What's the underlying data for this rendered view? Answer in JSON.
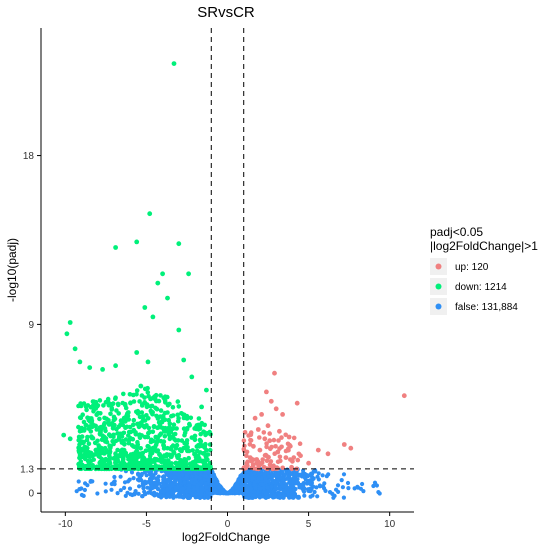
{
  "chart_data": {
    "type": "scatter",
    "title": "SRvsCR",
    "xlabel": "log2FoldChange",
    "ylabel": "-log10(padj)",
    "xlim": [
      -11.5,
      11.5
    ],
    "ylim": [
      -1.0,
      24.8
    ],
    "x_ticks": [
      -10,
      -5,
      0,
      5,
      10
    ],
    "y_ticks": [
      0,
      1.3,
      9,
      18
    ],
    "grid": false,
    "legend": {
      "title_line1": "padj<0.05",
      "title_line2": "|log2FoldChange|>1",
      "placement": "right",
      "entries": [
        {
          "label": "up: 120",
          "color": "#f08080"
        },
        {
          "label": "down: 1214",
          "color": "#00f07a"
        },
        {
          "label": "false: 131,884",
          "color": "#2e8ff5"
        }
      ]
    },
    "thresholds": {
      "x": [
        -1,
        1
      ],
      "y": 1.3
    },
    "series": [
      {
        "name": "up: 120",
        "color": "#f08080",
        "points": [
          [
            10.9,
            5.2
          ],
          [
            2.9,
            6.4
          ],
          [
            2.4,
            5.4
          ],
          [
            2.7,
            4.9
          ],
          [
            4.3,
            4.8
          ],
          [
            3.0,
            4.5
          ],
          [
            3.4,
            4.2
          ],
          [
            2.1,
            4.2
          ],
          [
            1.7,
            4.0
          ],
          [
            1.9,
            3.4
          ],
          [
            2.5,
            3.6
          ],
          [
            3.2,
            3.3
          ],
          [
            3.8,
            3.0
          ],
          [
            2.6,
            2.8
          ],
          [
            2.3,
            2.9
          ],
          [
            7.2,
            2.6
          ],
          [
            6.2,
            2.1
          ],
          [
            5.6,
            2.3
          ],
          [
            7.6,
            2.4
          ],
          [
            4.5,
            2.0
          ],
          [
            3.1,
            2.2
          ],
          [
            2.0,
            2.3
          ],
          [
            1.6,
            2.5
          ],
          [
            1.4,
            1.9
          ],
          [
            1.2,
            1.6
          ],
          [
            1.8,
            1.8
          ],
          [
            2.4,
            2.0
          ],
          [
            3.6,
            1.9
          ],
          [
            4.0,
            1.7
          ],
          [
            5.0,
            1.6
          ]
        ]
      },
      {
        "name": "down: 1214",
        "color": "#00f07a",
        "points": [
          [
            -3.3,
            22.9
          ],
          [
            -4.8,
            14.9
          ],
          [
            -5.6,
            13.4
          ],
          [
            -3.0,
            13.3
          ],
          [
            -6.9,
            13.1
          ],
          [
            -4.0,
            11.7
          ],
          [
            -2.4,
            11.7
          ],
          [
            -5.1,
            9.9
          ],
          [
            -4.3,
            11.2
          ],
          [
            -3.7,
            10.4
          ],
          [
            -4.6,
            9.4
          ],
          [
            -3.0,
            8.7
          ],
          [
            -9.7,
            9.1
          ],
          [
            -9.9,
            8.5
          ],
          [
            -9.4,
            7.7
          ],
          [
            -9.1,
            7.0
          ],
          [
            -8.5,
            6.7
          ],
          [
            -7.7,
            6.6
          ],
          [
            -6.9,
            6.8
          ],
          [
            -5.6,
            7.5
          ],
          [
            -4.9,
            7.0
          ],
          [
            -2.7,
            7.1
          ],
          [
            -2.2,
            6.2
          ],
          [
            -10.1,
            3.1
          ],
          [
            -9.7,
            2.9
          ],
          [
            -8.7,
            2.0
          ],
          [
            -1.3,
            5.5
          ],
          [
            -1.6,
            4.6
          ]
        ]
      }
    ]
  }
}
